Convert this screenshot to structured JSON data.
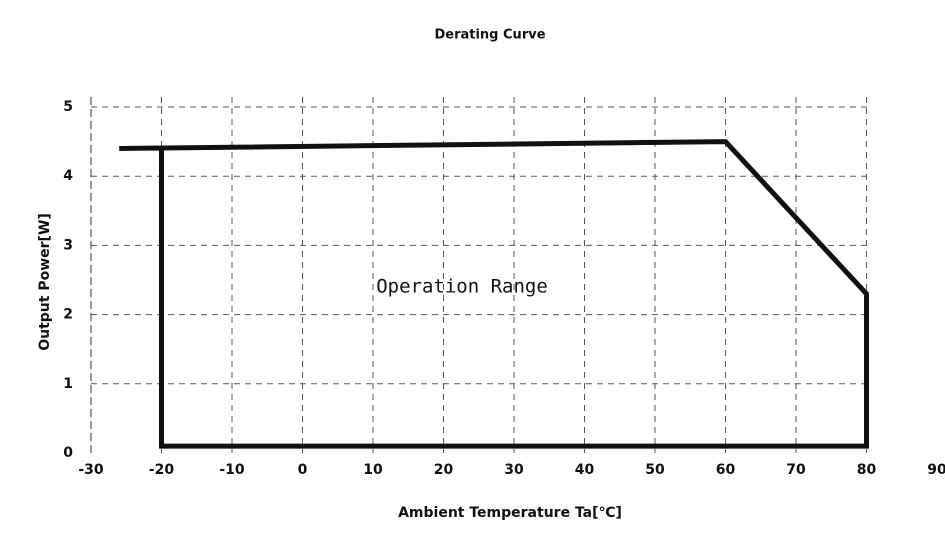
{
  "chart_data": {
    "type": "line",
    "title": "Derating Curve",
    "xlabel": "Ambient Temperature Ta[℃]",
    "ylabel": "Output Power[W]",
    "annotation": "Operation Range",
    "x": [
      -26,
      60,
      80,
      80,
      -20,
      -20
    ],
    "values": [
      4.4,
      4.5,
      2.3,
      0.1,
      0.1,
      4.4
    ],
    "color": "#111111",
    "xlim": [
      -30,
      90
    ],
    "ylim": [
      0,
      5
    ],
    "xticks": [
      -30,
      -20,
      -10,
      0,
      10,
      20,
      30,
      40,
      50,
      60,
      70,
      80,
      90
    ],
    "yticks": [
      0,
      1,
      2,
      3,
      4,
      5
    ],
    "grid": true
  }
}
